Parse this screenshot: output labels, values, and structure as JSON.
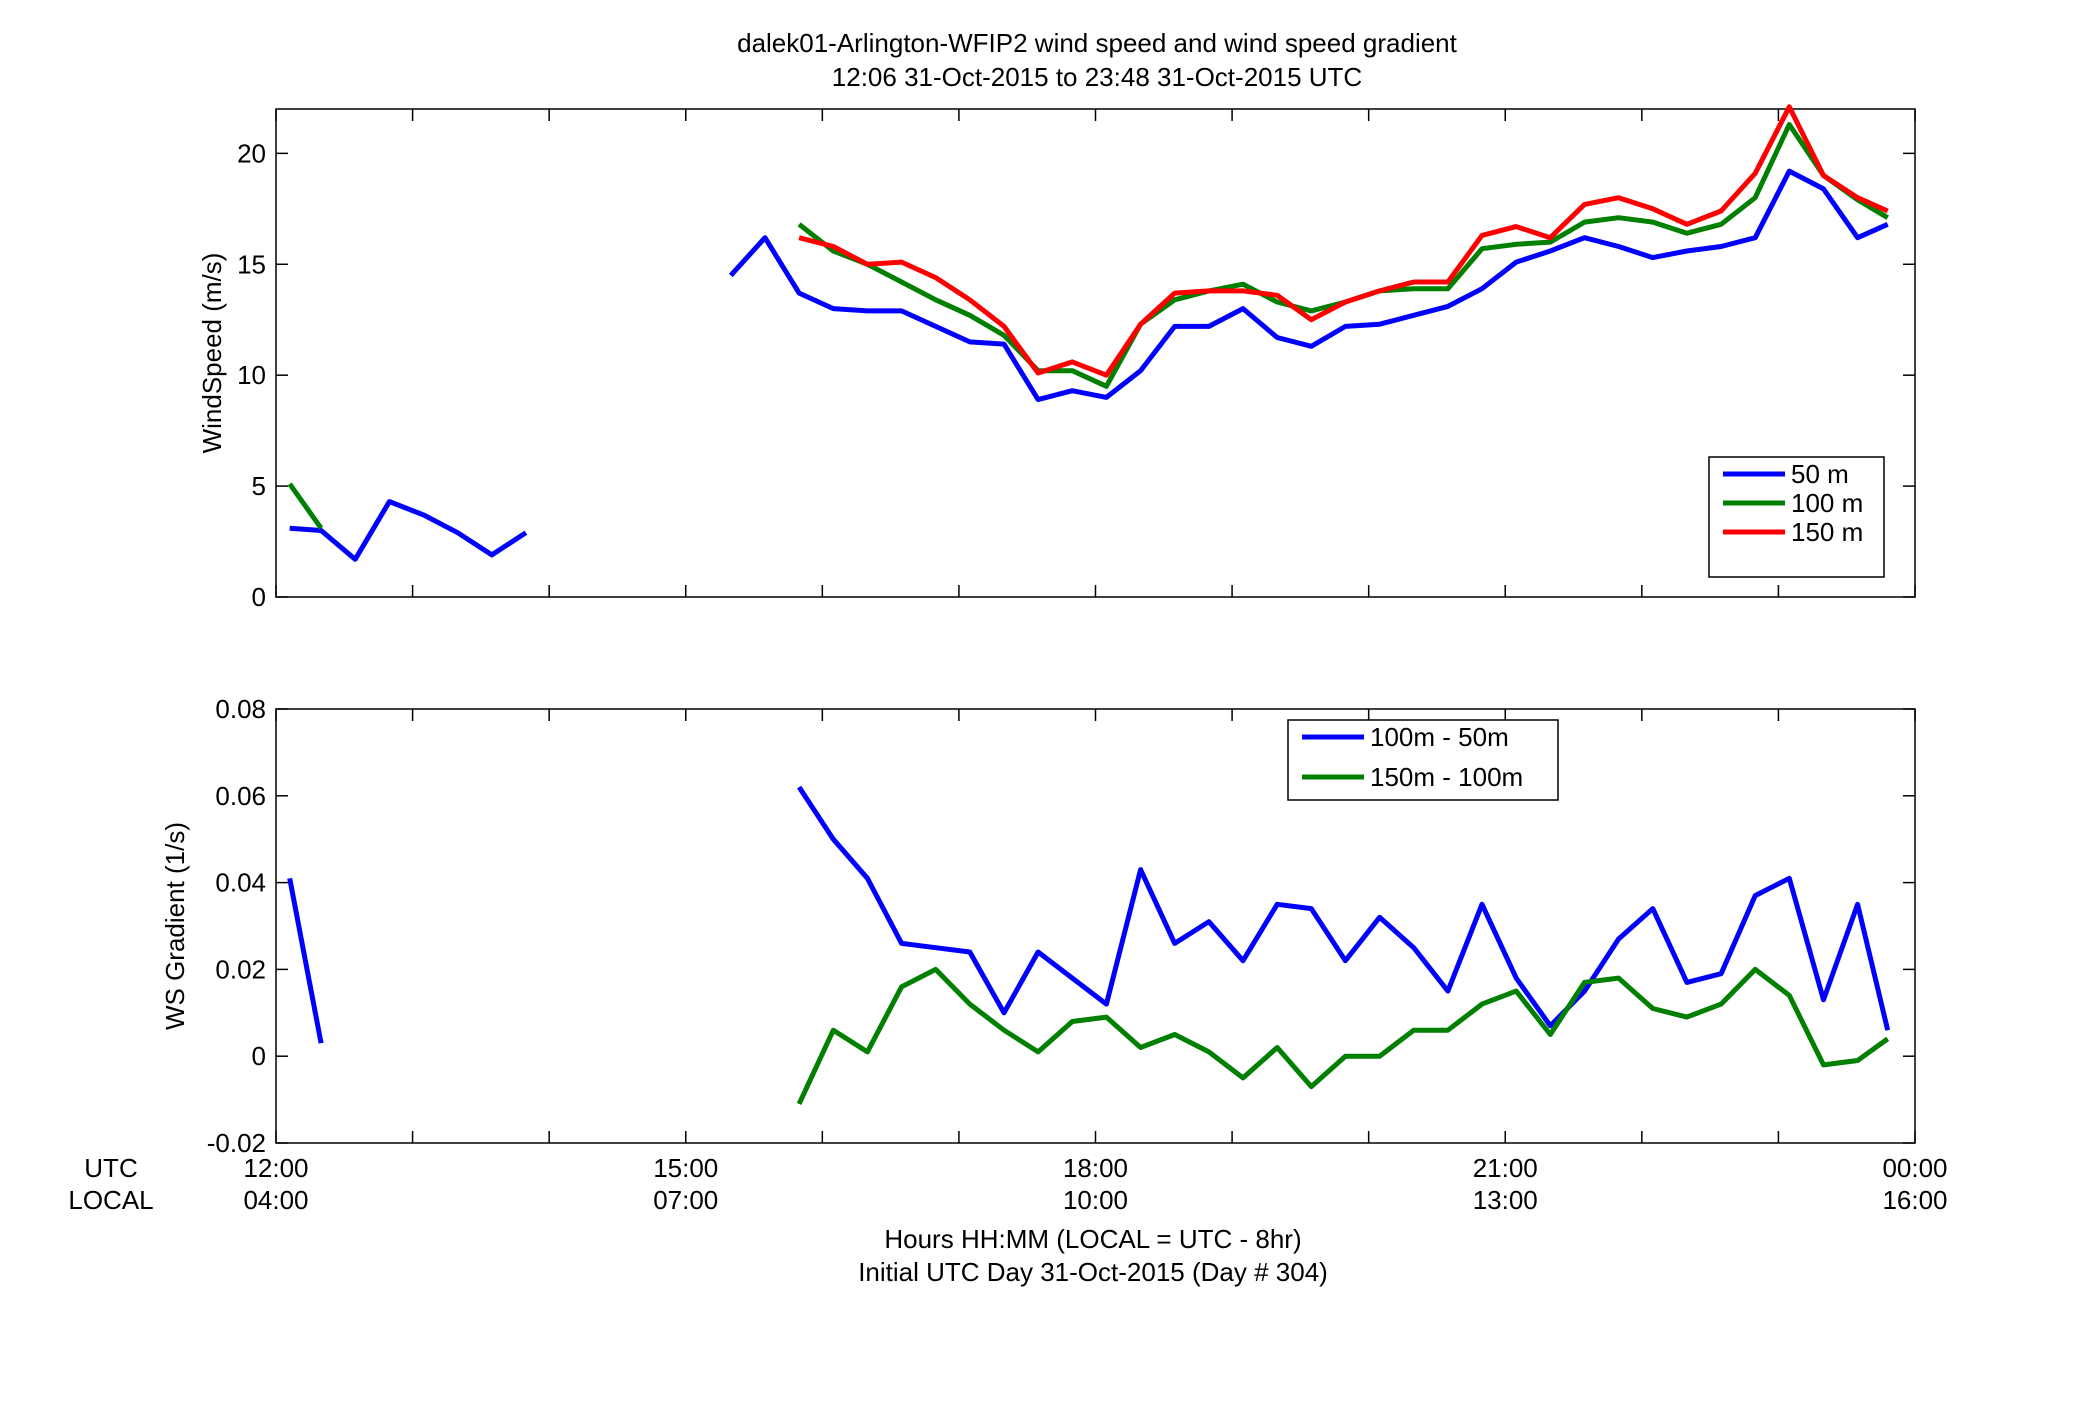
{
  "figure": {
    "title_line1": "dalek01-Arlington-WFIP2  wind speed and wind speed gradient",
    "title_line2": "12:06 31-Oct-2015 to 23:48 31-Oct-2015  UTC",
    "xlabel_line1": "Hours HH:MM  (LOCAL = UTC - 8hr)",
    "xlabel_line2": "Initial UTC Day 31-Oct-2015 (Day # 304)",
    "row_label_utc": "UTC",
    "row_label_local": "LOCAL",
    "xticks_utc": [
      "12:00",
      "15:00",
      "18:00",
      "21:00",
      "00:00"
    ],
    "xticks_local": [
      "04:00",
      "07:00",
      "10:00",
      "13:00",
      "16:00"
    ]
  },
  "chart_data": [
    {
      "type": "line",
      "ylabel": "WindSpeed (m/s)",
      "xlim": [
        12.0,
        24.0
      ],
      "ylim": [
        0,
        22
      ],
      "yticks": [
        "0",
        "5",
        "10",
        "15",
        "20"
      ],
      "ytick_values": [
        0,
        5,
        10,
        15,
        20
      ],
      "legend_position": "lower-right",
      "grid": false,
      "series": [
        {
          "name": "50 m",
          "color": "#0000ff",
          "points": [
            [
              12.1,
              3.1
            ],
            [
              12.33,
              3.0
            ],
            [
              12.58,
              1.7
            ],
            [
              12.83,
              4.3
            ],
            [
              13.08,
              3.7
            ],
            [
              13.33,
              2.9
            ],
            [
              13.58,
              1.9
            ],
            [
              13.83,
              2.9
            ],
            null,
            [
              15.33,
              14.5
            ],
            [
              15.58,
              16.2
            ],
            [
              15.83,
              13.7
            ],
            [
              16.08,
              13.0
            ],
            [
              16.33,
              12.9
            ],
            [
              16.58,
              12.9
            ],
            [
              16.83,
              12.2
            ],
            [
              17.08,
              11.5
            ],
            [
              17.33,
              11.4
            ],
            [
              17.58,
              8.9
            ],
            [
              17.83,
              9.3
            ],
            [
              18.08,
              9.0
            ],
            [
              18.33,
              10.2
            ],
            [
              18.58,
              12.2
            ],
            [
              18.83,
              12.2
            ],
            [
              19.08,
              13.0
            ],
            [
              19.33,
              11.7
            ],
            [
              19.58,
              11.3
            ],
            [
              19.83,
              12.2
            ],
            [
              20.08,
              12.3
            ],
            [
              20.33,
              12.7
            ],
            [
              20.58,
              13.1
            ],
            [
              20.83,
              13.9
            ],
            [
              21.08,
              15.1
            ],
            [
              21.33,
              15.6
            ],
            [
              21.58,
              16.2
            ],
            [
              21.83,
              15.8
            ],
            [
              22.08,
              15.3
            ],
            [
              22.33,
              15.6
            ],
            [
              22.58,
              15.8
            ],
            [
              22.83,
              16.2
            ],
            [
              23.08,
              19.2
            ],
            [
              23.33,
              18.4
            ],
            [
              23.58,
              16.2
            ],
            [
              23.8,
              16.8
            ]
          ]
        },
        {
          "name": "100 m",
          "color": "#007f00",
          "points": [
            [
              12.1,
              5.1
            ],
            [
              12.33,
              3.1
            ],
            null,
            [
              15.83,
              16.8
            ],
            [
              16.08,
              15.6
            ],
            [
              16.33,
              15.0
            ],
            [
              16.58,
              14.2
            ],
            [
              16.83,
              13.4
            ],
            [
              17.08,
              12.7
            ],
            [
              17.33,
              11.8
            ],
            [
              17.58,
              10.2
            ],
            [
              17.83,
              10.2
            ],
            [
              18.08,
              9.5
            ],
            [
              18.33,
              12.3
            ],
            [
              18.58,
              13.4
            ],
            [
              18.83,
              13.8
            ],
            [
              19.08,
              14.1
            ],
            [
              19.33,
              13.3
            ],
            [
              19.58,
              12.9
            ],
            [
              19.83,
              13.3
            ],
            [
              20.08,
              13.8
            ],
            [
              20.33,
              13.9
            ],
            [
              20.58,
              13.9
            ],
            [
              20.83,
              15.7
            ],
            [
              21.08,
              15.9
            ],
            [
              21.33,
              16.0
            ],
            [
              21.58,
              16.9
            ],
            [
              21.83,
              17.1
            ],
            [
              22.08,
              16.9
            ],
            [
              22.33,
              16.4
            ],
            [
              22.58,
              16.8
            ],
            [
              22.83,
              18.0
            ],
            [
              23.08,
              21.3
            ],
            [
              23.33,
              19.0
            ],
            [
              23.58,
              17.9
            ],
            [
              23.8,
              17.1
            ]
          ]
        },
        {
          "name": "150 m",
          "color": "#ff0000",
          "points": [
            [
              15.83,
              16.2
            ],
            [
              16.08,
              15.8
            ],
            [
              16.33,
              15.0
            ],
            [
              16.58,
              15.1
            ],
            [
              16.83,
              14.4
            ],
            [
              17.08,
              13.4
            ],
            [
              17.33,
              12.2
            ],
            [
              17.58,
              10.1
            ],
            [
              17.83,
              10.6
            ],
            [
              18.08,
              10.0
            ],
            [
              18.33,
              12.3
            ],
            [
              18.58,
              13.7
            ],
            [
              18.83,
              13.8
            ],
            [
              19.08,
              13.8
            ],
            [
              19.33,
              13.6
            ],
            [
              19.58,
              12.5
            ],
            [
              19.83,
              13.3
            ],
            [
              20.08,
              13.8
            ],
            [
              20.33,
              14.2
            ],
            [
              20.58,
              14.2
            ],
            [
              20.83,
              16.3
            ],
            [
              21.08,
              16.7
            ],
            [
              21.33,
              16.2
            ],
            [
              21.58,
              17.7
            ],
            [
              21.83,
              18.0
            ],
            [
              22.08,
              17.5
            ],
            [
              22.33,
              16.8
            ],
            [
              22.58,
              17.4
            ],
            [
              22.83,
              19.1
            ],
            [
              23.08,
              22.1
            ],
            [
              23.33,
              19.0
            ],
            [
              23.58,
              18.0
            ],
            [
              23.8,
              17.4
            ]
          ]
        }
      ]
    },
    {
      "type": "line",
      "ylabel": "WS Gradient (1/s)",
      "xlim": [
        12.0,
        24.0
      ],
      "ylim": [
        -0.02,
        0.08
      ],
      "yticks": [
        "-0.02",
        "0",
        "0.02",
        "0.04",
        "0.06",
        "0.08"
      ],
      "ytick_values": [
        -0.02,
        0,
        0.02,
        0.04,
        0.06,
        0.08
      ],
      "legend_position": "upper-center",
      "grid": false,
      "series": [
        {
          "name": "100m - 50m",
          "color": "#0000ff",
          "points": [
            [
              12.1,
              0.041
            ],
            [
              12.33,
              0.003
            ],
            null,
            [
              15.83,
              0.062
            ],
            [
              16.08,
              0.05
            ],
            [
              16.33,
              0.041
            ],
            [
              16.58,
              0.026
            ],
            [
              16.83,
              0.025
            ],
            [
              17.08,
              0.024
            ],
            [
              17.33,
              0.01
            ],
            [
              17.58,
              0.024
            ],
            [
              17.83,
              0.018
            ],
            [
              18.08,
              0.012
            ],
            [
              18.33,
              0.043
            ],
            [
              18.58,
              0.026
            ],
            [
              18.83,
              0.031
            ],
            [
              19.08,
              0.022
            ],
            [
              19.33,
              0.035
            ],
            [
              19.58,
              0.034
            ],
            [
              19.83,
              0.022
            ],
            [
              20.08,
              0.032
            ],
            [
              20.33,
              0.025
            ],
            [
              20.58,
              0.015
            ],
            [
              20.83,
              0.035
            ],
            [
              21.08,
              0.018
            ],
            [
              21.33,
              0.007
            ],
            [
              21.58,
              0.015
            ],
            [
              21.83,
              0.027
            ],
            [
              22.08,
              0.034
            ],
            [
              22.33,
              0.017
            ],
            [
              22.58,
              0.019
            ],
            [
              22.83,
              0.037
            ],
            [
              23.08,
              0.041
            ],
            [
              23.33,
              0.013
            ],
            [
              23.58,
              0.035
            ],
            [
              23.8,
              0.006
            ]
          ]
        },
        {
          "name": "150m - 100m",
          "color": "#007f00",
          "points": [
            [
              15.83,
              -0.011
            ],
            [
              16.08,
              0.006
            ],
            [
              16.33,
              0.001
            ],
            [
              16.58,
              0.016
            ],
            [
              16.83,
              0.02
            ],
            [
              17.08,
              0.012
            ],
            [
              17.33,
              0.006
            ],
            [
              17.58,
              0.001
            ],
            [
              17.83,
              0.008
            ],
            [
              18.08,
              0.009
            ],
            [
              18.33,
              0.002
            ],
            [
              18.58,
              0.005
            ],
            [
              18.83,
              0.001
            ],
            [
              19.08,
              -0.005
            ],
            [
              19.33,
              0.002
            ],
            [
              19.58,
              -0.007
            ],
            [
              19.83,
              0.0
            ],
            [
              20.08,
              0.0
            ],
            [
              20.33,
              0.006
            ],
            [
              20.58,
              0.006
            ],
            [
              20.83,
              0.012
            ],
            [
              21.08,
              0.015
            ],
            [
              21.33,
              0.005
            ],
            [
              21.58,
              0.017
            ],
            [
              21.83,
              0.018
            ],
            [
              22.08,
              0.011
            ],
            [
              22.33,
              0.009
            ],
            [
              22.58,
              0.012
            ],
            [
              22.83,
              0.02
            ],
            [
              23.08,
              0.014
            ],
            [
              23.33,
              -0.002
            ],
            [
              23.58,
              -0.001
            ],
            [
              23.8,
              0.004
            ]
          ]
        }
      ]
    }
  ]
}
